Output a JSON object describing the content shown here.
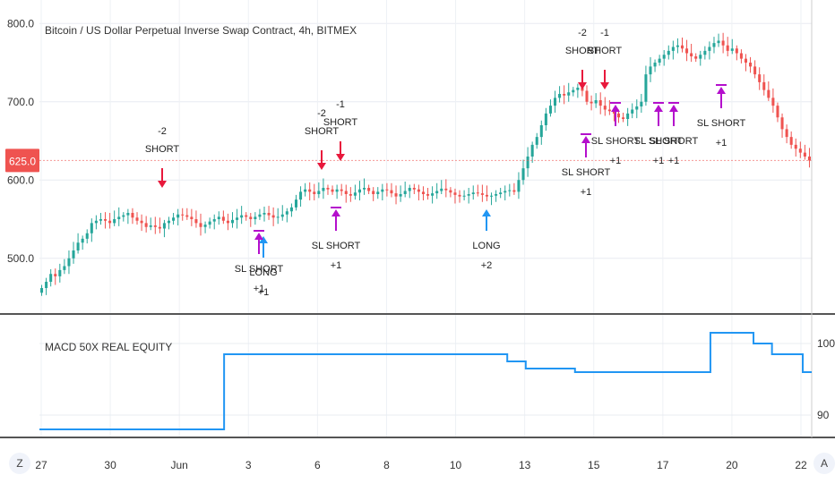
{
  "chart_data": [
    {
      "type": "candlestick",
      "title": "Bitcoin / US Dollar Perpetual Inverse Swap Contract, 4h, BITMEX",
      "y_ticks": [
        "800.0",
        "700.0",
        "600.0",
        "500.0"
      ],
      "y_ticks_values": [
        800,
        700,
        600,
        500
      ],
      "ylim": [
        430,
        830
      ],
      "last_price": "625.0",
      "last_price_value": 625,
      "grid": true,
      "colors": {
        "up": "#26a69a",
        "down": "#ef5350",
        "short_arrow": "#e8193c",
        "long_arrow": "#2196f3",
        "sl_arrow": "#b40fcc",
        "price_badge": "#ef5350"
      },
      "closes": [
        462,
        470,
        480,
        477,
        485,
        490,
        500,
        510,
        520,
        525,
        532,
        545,
        548,
        550,
        548,
        545,
        550,
        553,
        555,
        558,
        552,
        548,
        545,
        540,
        542,
        540,
        538,
        545,
        548,
        552,
        556,
        555,
        553,
        550,
        545,
        540,
        543,
        547,
        550,
        553,
        548,
        545,
        549,
        552,
        555,
        553,
        550,
        553,
        556,
        558,
        555,
        552,
        553,
        556,
        560,
        565,
        575,
        585,
        588,
        585,
        582,
        586,
        590,
        588,
        585,
        588,
        586,
        582,
        580,
        584,
        588,
        590,
        586,
        582,
        585,
        588,
        587,
        583,
        579,
        582,
        586,
        590,
        588,
        585,
        582,
        580,
        583,
        586,
        589,
        587,
        584,
        581,
        579,
        580,
        582,
        584,
        583,
        581,
        579,
        580,
        582,
        584,
        586,
        587,
        585,
        600,
        615,
        630,
        645,
        655,
        670,
        685,
        695,
        705,
        710,
        708,
        712,
        715,
        718,
        714,
        700,
        698,
        702,
        695,
        690,
        688,
        685,
        680,
        678,
        685,
        690,
        694,
        700,
        735,
        745,
        750,
        755,
        760,
        765,
        770,
        772,
        768,
        762,
        758,
        755,
        760,
        765,
        770,
        775,
        778,
        772,
        765,
        768,
        762,
        755,
        750,
        745,
        735,
        725,
        715,
        705,
        695,
        680,
        665,
        655,
        645,
        640,
        635,
        630,
        625
      ]
    },
    {
      "type": "line",
      "title": "MACD 50X REAL EQUITY",
      "y_ticks": [
        "100",
        "90"
      ],
      "y_ticks_values": [
        100,
        90
      ],
      "ylim": [
        87,
        104
      ],
      "color": "#2196f3",
      "x_ticks": [
        "27",
        "30",
        "Jun",
        "3",
        "6",
        "8",
        "10",
        "13",
        "15",
        "17",
        "20",
        "22"
      ],
      "step_x": [
        0,
        0.3,
        0.54,
        0.76,
        0.79,
        0.81,
        0.87,
        1.03,
        1.09,
        1.16,
        1.19,
        1.24
      ],
      "step_values": [
        88,
        98.5,
        98.5,
        97.5,
        96.5,
        96.5,
        96,
        96,
        101.5,
        100,
        98.5,
        96
      ]
    }
  ],
  "annotations": [
    {
      "label": "-2",
      "label2": "SHORT",
      "kind": "short"
    },
    {
      "label": "LONG",
      "label2": "+1",
      "kind": "long"
    },
    {
      "label": "SL SHORT",
      "label2": "+1",
      "kind": "sl"
    },
    {
      "label": "-2",
      "label2": "SHORT",
      "kind": "short"
    },
    {
      "label": "-1",
      "label2": "SHORT",
      "kind": "short"
    },
    {
      "label": "SL SHORT",
      "label2": "+1",
      "kind": "sl"
    },
    {
      "label": "LONG",
      "label2": "+2",
      "kind": "long"
    },
    {
      "label": "-2",
      "label2": "SHORT",
      "kind": "short"
    },
    {
      "label": "-1",
      "label2": "SHORT",
      "kind": "short"
    },
    {
      "label": "SL SHORT",
      "label2": "+1",
      "kind": "sl"
    },
    {
      "label": "SL SHORT",
      "label2": "+1",
      "kind": "sl"
    },
    {
      "label": "SL SHORT",
      "label2": "+1",
      "kind": "sl"
    },
    {
      "label": "SL SHORT",
      "label2": "+1",
      "kind": "sl"
    },
    {
      "label": "SL SHORT",
      "label2": "+1",
      "kind": "sl"
    }
  ],
  "toolbar": {
    "left_icon": "Z",
    "right_icon": "A"
  }
}
